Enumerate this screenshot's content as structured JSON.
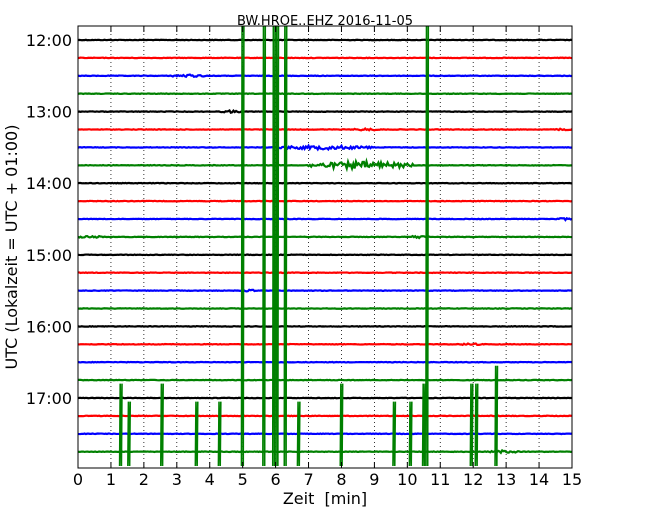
{
  "chart_data": {
    "type": "line",
    "title": "BW.HROE..EHZ 2016-11-05",
    "xlabel": "Zeit  [min]",
    "ylabel": "UTC (Lokalzeit = UTC + 01:00)",
    "xlim": [
      0,
      15
    ],
    "x_ticks": [
      0,
      1,
      2,
      3,
      4,
      5,
      6,
      7,
      8,
      9,
      10,
      11,
      12,
      13,
      14,
      15
    ],
    "y_ticks": [
      "12:00",
      "13:00",
      "14:00",
      "15:00",
      "16:00",
      "17:00"
    ],
    "grid": true,
    "trace_interval_min": 15,
    "colors": [
      "#000000",
      "#ff0000",
      "#0000ff",
      "#008000"
    ],
    "traces": [
      {
        "start": "12:00",
        "color": "#000000"
      },
      {
        "start": "12:15",
        "color": "#ff0000"
      },
      {
        "start": "12:30",
        "color": "#0000ff"
      },
      {
        "start": "12:45",
        "color": "#008000"
      },
      {
        "start": "13:00",
        "color": "#000000"
      },
      {
        "start": "13:15",
        "color": "#ff0000"
      },
      {
        "start": "13:30",
        "color": "#0000ff"
      },
      {
        "start": "13:45",
        "color": "#008000"
      },
      {
        "start": "14:00",
        "color": "#000000"
      },
      {
        "start": "14:15",
        "color": "#ff0000"
      },
      {
        "start": "14:30",
        "color": "#0000ff"
      },
      {
        "start": "14:45",
        "color": "#008000"
      },
      {
        "start": "15:00",
        "color": "#000000"
      },
      {
        "start": "15:15",
        "color": "#ff0000"
      },
      {
        "start": "15:30",
        "color": "#0000ff"
      },
      {
        "start": "15:45",
        "color": "#008000"
      },
      {
        "start": "16:00",
        "color": "#000000"
      },
      {
        "start": "16:15",
        "color": "#ff0000"
      },
      {
        "start": "16:30",
        "color": "#0000ff"
      },
      {
        "start": "16:45",
        "color": "#008000"
      },
      {
        "start": "17:00",
        "color": "#000000"
      },
      {
        "start": "17:15",
        "color": "#ff0000"
      },
      {
        "start": "17:30",
        "color": "#0000ff"
      },
      {
        "start": "17:45",
        "color": "#008000"
      }
    ],
    "spikes": [
      {
        "x": 5.0,
        "trace_from": 0,
        "trace_to": 23
      },
      {
        "x": 5.65,
        "trace_from": 0,
        "trace_to": 23
      },
      {
        "x": 5.95,
        "trace_from": 0,
        "trace_to": 23
      },
      {
        "x": 6.05,
        "trace_from": 0,
        "trace_to": 23
      },
      {
        "x": 6.3,
        "trace_from": 0,
        "trace_to": 23
      },
      {
        "x": 10.6,
        "trace_from": 0,
        "trace_to": 23
      },
      {
        "x": 1.3,
        "trace_from": 20,
        "trace_to": 23
      },
      {
        "x": 1.55,
        "trace_from": 21,
        "trace_to": 23
      },
      {
        "x": 2.55,
        "trace_from": 20,
        "trace_to": 23
      },
      {
        "x": 3.6,
        "trace_from": 21,
        "trace_to": 23
      },
      {
        "x": 4.3,
        "trace_from": 21,
        "trace_to": 23
      },
      {
        "x": 6.7,
        "trace_from": 21,
        "trace_to": 23
      },
      {
        "x": 8.0,
        "trace_from": 20,
        "trace_to": 23
      },
      {
        "x": 9.6,
        "trace_from": 21,
        "trace_to": 23
      },
      {
        "x": 10.1,
        "trace_from": 21,
        "trace_to": 23
      },
      {
        "x": 10.5,
        "trace_from": 20,
        "trace_to": 23
      },
      {
        "x": 11.95,
        "trace_from": 20,
        "trace_to": 23
      },
      {
        "x": 12.1,
        "trace_from": 20,
        "trace_to": 23
      },
      {
        "x": 12.7,
        "trace_from": 19,
        "trace_to": 23
      }
    ],
    "bursts": [
      {
        "trace": 2,
        "x_start": 2.8,
        "x_end": 3.9,
        "amplitude": 0.08
      },
      {
        "trace": 4,
        "x_start": 4.3,
        "x_end": 5.0,
        "amplitude": 0.07
      },
      {
        "trace": 5,
        "x_start": 8.3,
        "x_end": 9.2,
        "amplitude": 0.07
      },
      {
        "trace": 5,
        "x_start": 14.5,
        "x_end": 15.0,
        "amplitude": 0.07
      },
      {
        "trace": 6,
        "x_start": 6.0,
        "x_end": 9.0,
        "amplitude": 0.12
      },
      {
        "trace": 7,
        "x_start": 7.0,
        "x_end": 10.2,
        "amplitude": 0.22
      },
      {
        "trace": 10,
        "x_start": 14.5,
        "x_end": 15.0,
        "amplitude": 0.07
      },
      {
        "trace": 11,
        "x_start": 0.0,
        "x_end": 0.8,
        "amplitude": 0.07
      },
      {
        "trace": 11,
        "x_start": 10.0,
        "x_end": 10.7,
        "amplitude": 0.08
      },
      {
        "trace": 14,
        "x_start": 5.0,
        "x_end": 5.4,
        "amplitude": 0.06
      },
      {
        "trace": 17,
        "x_start": 11.6,
        "x_end": 12.2,
        "amplitude": 0.07
      },
      {
        "trace": 23,
        "x_start": 12.5,
        "x_end": 13.4,
        "amplitude": 0.08
      }
    ]
  }
}
